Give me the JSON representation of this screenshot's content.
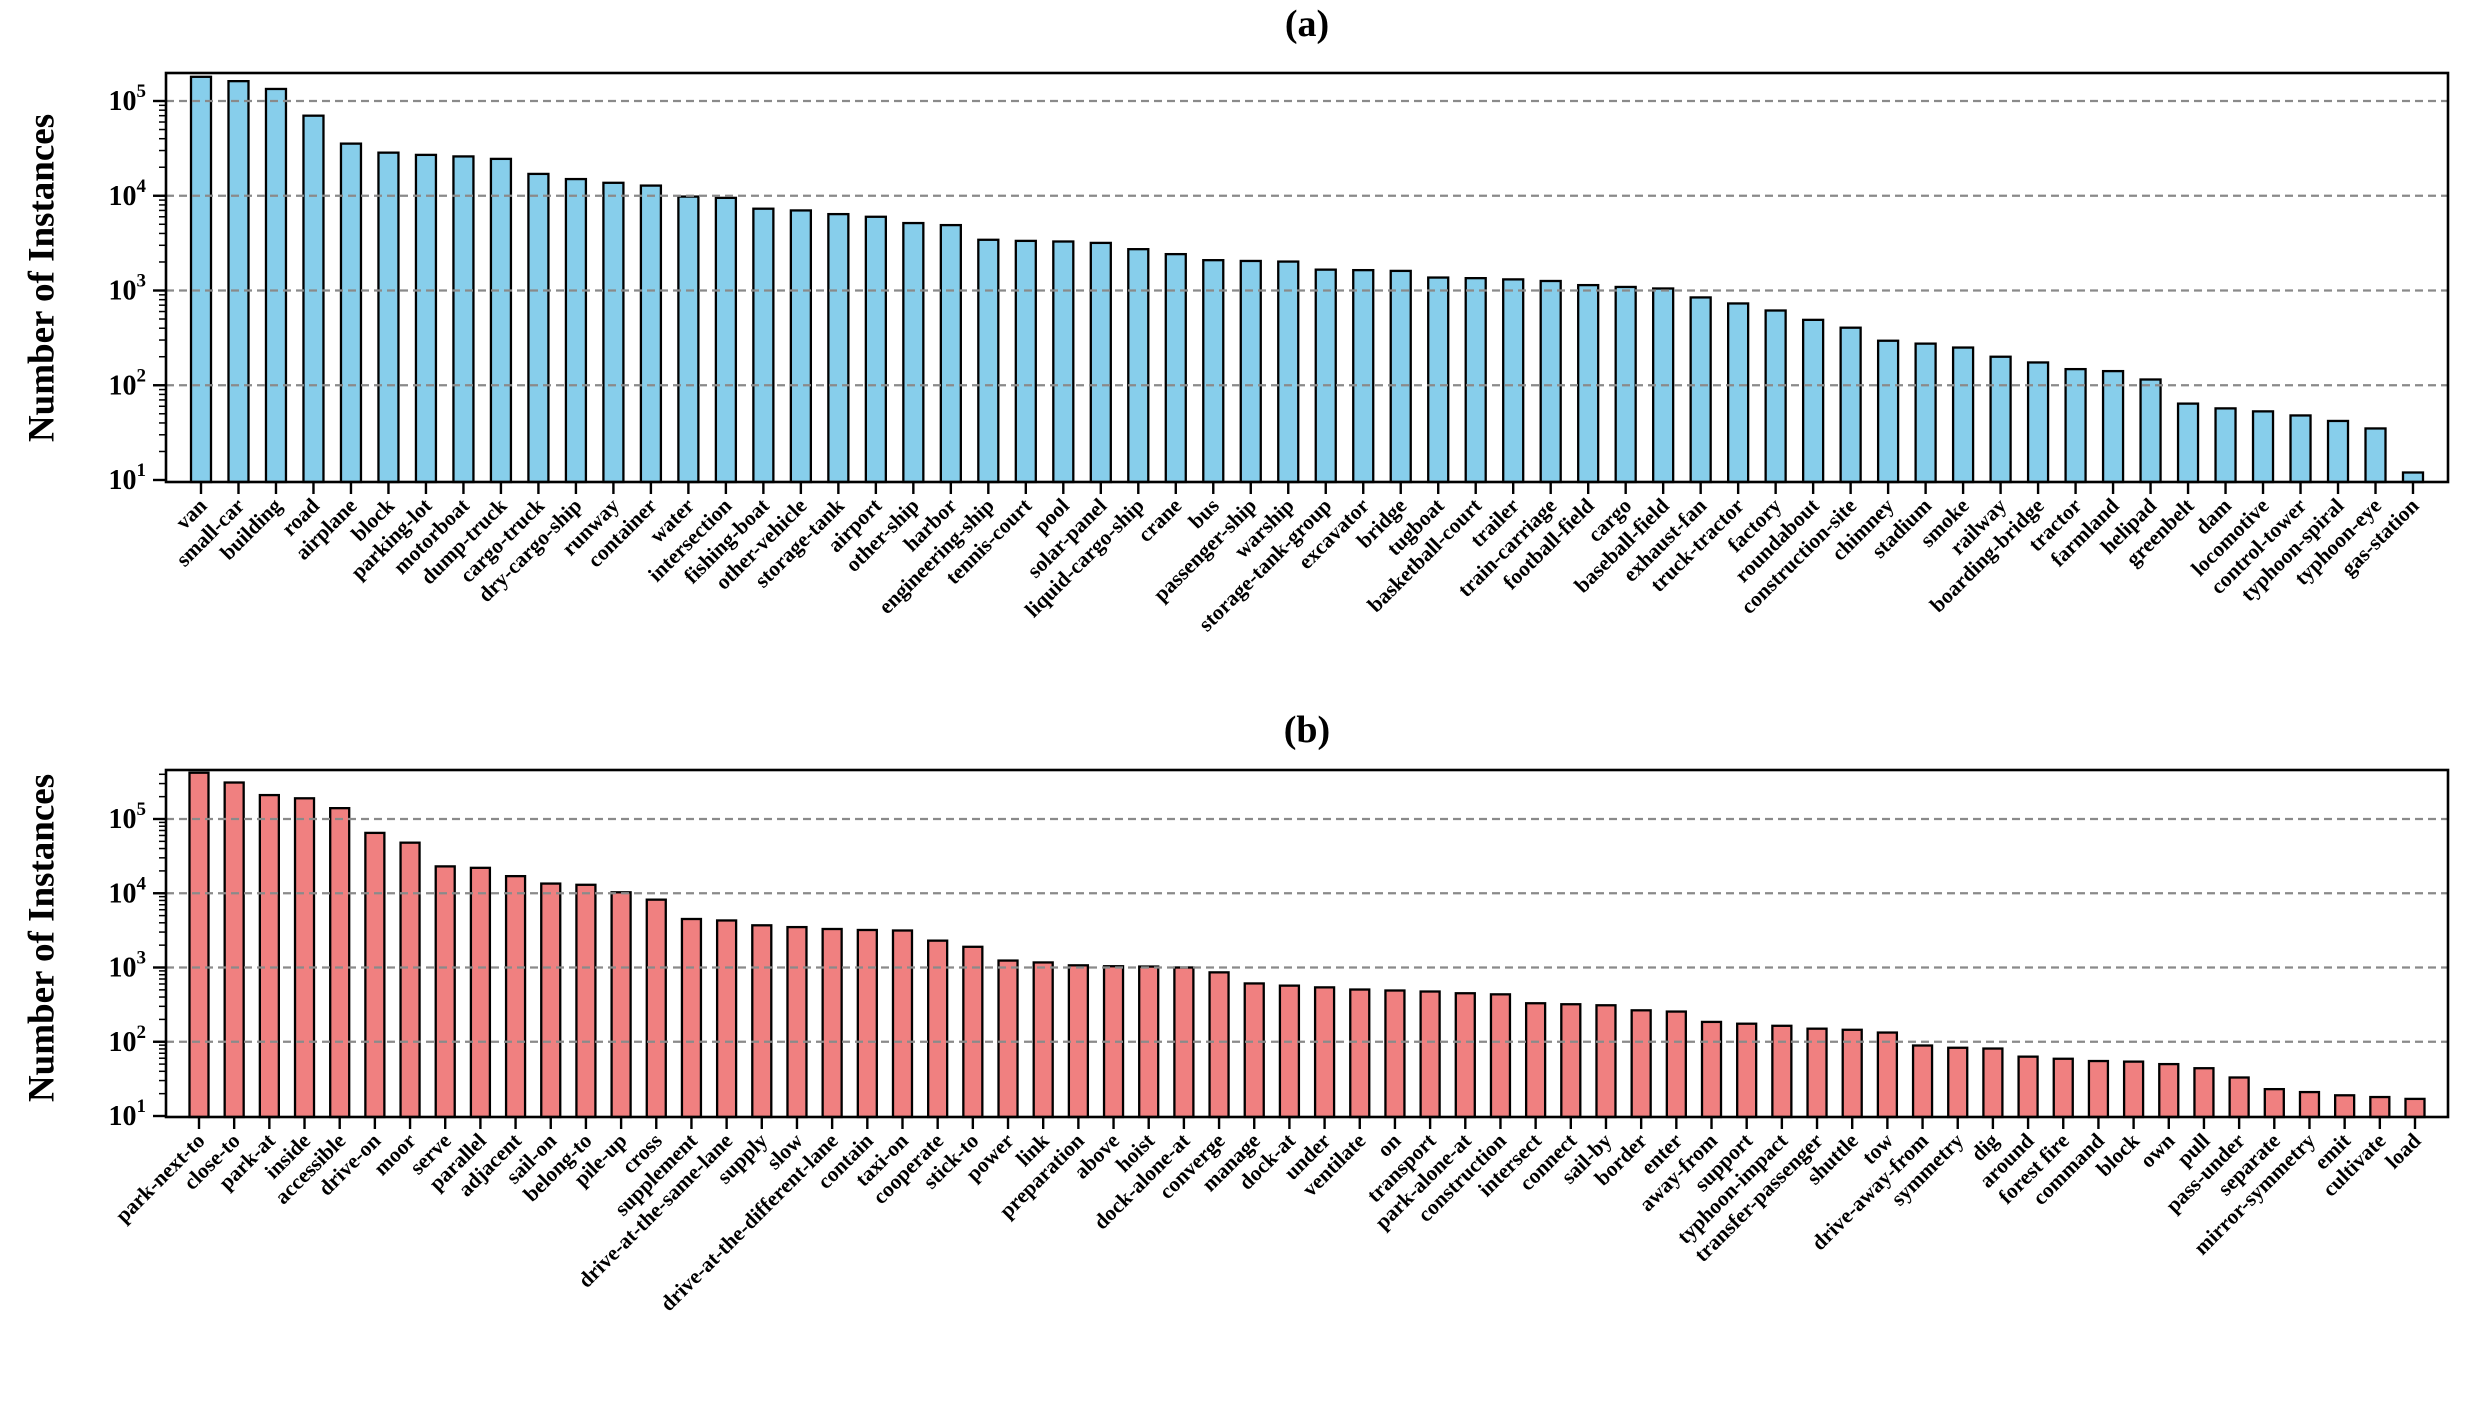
{
  "figure": {
    "background_color": "#ffffff",
    "grid_color": "#8a8a8a",
    "axis_color": "#000000",
    "bar_edge_color": "#000000",
    "ylabel": "Number of Instances"
  },
  "chart_data": [
    {
      "type": "bar",
      "title": "(a)",
      "ylabel": "Number of Instances",
      "yscale": "log",
      "ylim": [
        10,
        280000
      ],
      "grid": "horizontal-dashed-decades",
      "legend": "none",
      "bar_color": "#87CEEB",
      "ytick_exponents": [
        5,
        4,
        3,
        2,
        1
      ],
      "categories": [
        "van",
        "small-car",
        "building",
        "road",
        "airplane",
        "block",
        "parking-lot",
        "motorboat",
        "dump-truck",
        "cargo-truck",
        "dry-cargo-ship",
        "runway",
        "container",
        "water",
        "intersection",
        "fishing-boat",
        "other-vehicle",
        "storage-tank",
        "airport",
        "other-ship",
        "harbor",
        "engineering-ship",
        "tennis-court",
        "pool",
        "solar-panel",
        "liquid-cargo-ship",
        "crane",
        "bus",
        "passenger-ship",
        "warship",
        "storage-tank-group",
        "excavator",
        "bridge",
        "tugboat",
        "basketball-court",
        "trailer",
        "train-carriage",
        "football-field",
        "cargo",
        "baseball-field",
        "exhaust-fan",
        "truck-tractor",
        "factory",
        "roundabout",
        "construction-site",
        "chimney",
        "stadium",
        "smoke",
        "railway",
        "boarding-bridge",
        "tractor",
        "farmland",
        "helipad",
        "greenbelt",
        "dam",
        "locomotive",
        "control-tower",
        "typhoon-spiral",
        "typhoon-eye",
        "gas-station"
      ],
      "values": [
        180000,
        162000,
        134000,
        70000,
        35500,
        28500,
        27000,
        26000,
        24500,
        17000,
        15000,
        13700,
        12800,
        9800,
        9500,
        7300,
        7000,
        6400,
        6000,
        5150,
        4900,
        3430,
        3340,
        3290,
        3180,
        2730,
        2420,
        2090,
        2050,
        2020,
        1660,
        1640,
        1610,
        1370,
        1350,
        1310,
        1260,
        1140,
        1090,
        1050,
        845,
        730,
        615,
        490,
        405,
        295,
        275,
        250,
        200,
        174,
        148,
        141,
        115,
        64,
        57,
        53,
        48,
        42,
        35,
        12
      ]
    },
    {
      "type": "bar",
      "title": "(b)",
      "ylabel": "Number of Instances",
      "yscale": "log",
      "ylim": [
        10,
        450000
      ],
      "grid": "horizontal-dashed-decades",
      "legend": "none",
      "bar_color": "#F08080",
      "ytick_exponents": [
        5,
        4,
        3,
        2,
        1
      ],
      "categories": [
        "park-next-to",
        "close-to",
        "park-at",
        "inside",
        "accessible",
        "drive-on",
        "moor",
        "serve",
        "parallel",
        "adjacent",
        "sail-on",
        "belong-to",
        "pile-up",
        "cross",
        "supplement",
        "drive-at-the-same-lane",
        "supply",
        "slow",
        "drive-at-the-different-lane",
        "contain",
        "taxi-on",
        "cooperate",
        "stick-to",
        "power",
        "link",
        "preparation",
        "above",
        "hoist",
        "dock-alone-at",
        "converge",
        "manage",
        "dock-at",
        "under",
        "ventilate",
        "on",
        "transport",
        "park-alone-at",
        "construction",
        "intersect",
        "connect",
        "sail-by",
        "border",
        "enter",
        "away-from",
        "support",
        "typhoon-impact",
        "transfer-passenger",
        "shuttle",
        "tow",
        "drive-away-from",
        "symmetry",
        "dig",
        "around",
        "forest fire",
        "command",
        "block",
        "own",
        "pull",
        "pass-under",
        "separate",
        "mirror-symmetry",
        "emit",
        "cultivate",
        "load"
      ],
      "values": [
        420000,
        310000,
        210000,
        190000,
        140000,
        65000,
        48000,
        23000,
        22000,
        17000,
        13500,
        13000,
        10300,
        8200,
        4500,
        4300,
        3700,
        3500,
        3300,
        3200,
        3150,
        2300,
        1900,
        1240,
        1170,
        1070,
        1040,
        1030,
        1000,
        860,
        610,
        570,
        540,
        505,
        490,
        475,
        450,
        435,
        330,
        320,
        310,
        265,
        255,
        185,
        175,
        164,
        150,
        145,
        133,
        89,
        83,
        81,
        63,
        59,
        55,
        54,
        50,
        44,
        33,
        23,
        21,
        19,
        18,
        17
      ]
    }
  ]
}
